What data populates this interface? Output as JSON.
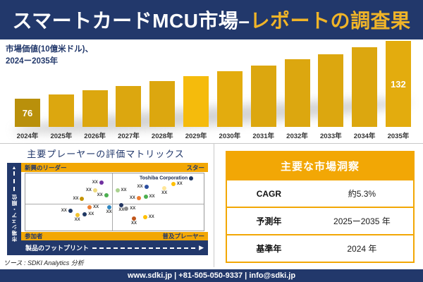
{
  "colors": {
    "navy": "#22386B",
    "gold_band": "#F2A705",
    "accent_yellow": "#F0B428",
    "bar_gold": "#DCA70F",
    "bar_gold_dark": "#B9900B",
    "bar_gold_bright": "#F5BB0C"
  },
  "header": {
    "title_main": "スマートカードMCU市場",
    "title_dash": "–",
    "title_accent": "レポートの調査果"
  },
  "bar_section": {
    "subtitle_line1": "市場価値(10億米ドル)、",
    "subtitle_line2": "2024ー2035年"
  },
  "chart_data": [
    {
      "type": "bar",
      "title": "市場価値(10億米ドル)、2024ー2035年",
      "categories": [
        "2024年",
        "2025年",
        "2026年",
        "2027年",
        "2028年",
        "2029年",
        "2030年",
        "2031年",
        "2032年",
        "2033年",
        "2034年",
        "2035年"
      ],
      "values": [
        76,
        80,
        84,
        88,
        93,
        98,
        103,
        108,
        114,
        119,
        126,
        132
      ],
      "data_labels": [
        "76",
        "",
        "",
        "",
        "",
        "",
        "",
        "",
        "",
        "",
        "",
        "132"
      ],
      "bar_colors": [
        "#B9900B",
        "#DCA70F",
        "#DCA70F",
        "#DCA70F",
        "#DCA70F",
        "#F5BB0C",
        "#E3AC0E",
        "#DCA70F",
        "#DCA70F",
        "#DCA70F",
        "#DCA70F",
        "#E3AC0E"
      ],
      "xlabel": "",
      "ylabel": "市場価値(10億米ドル)",
      "ylim": [
        0,
        140
      ],
      "grid": false,
      "note": "only 2024 (76) and 2035 (132) carry data labels; intermediate values estimated from bar heights at ~5.3% CAGR"
    },
    {
      "type": "scatter",
      "title": "主要プレーヤーの評価マトリックス",
      "xlabel": "製品のフットプリント",
      "ylabel": "市場シェア・順位",
      "quadrants": {
        "top_left": "新興のリーダー",
        "top_right": "スター",
        "bottom_left": "参加者",
        "bottom_right": "普及プレーヤー"
      },
      "divider_x_pct": 48.5,
      "divider_y_pct": 53,
      "points": [
        {
          "x": 42.6,
          "y": 16.5,
          "color": "#7030A0",
          "label": "XX",
          "label_side": "left"
        },
        {
          "x": 39.1,
          "y": 29.4,
          "color": "#F0DB7D",
          "label": "XX",
          "label_side": "left"
        },
        {
          "x": 45.3,
          "y": 38.8,
          "color": "#4CAF50",
          "label": "XX",
          "label_side": "left"
        },
        {
          "x": 31.8,
          "y": 44.7,
          "color": "#C49405",
          "label": "XX",
          "label_side": "left"
        },
        {
          "x": 36.0,
          "y": 58.8,
          "color": "#ED7D31",
          "label": "XX",
          "label_side": "right"
        },
        {
          "x": 46.9,
          "y": 58.8,
          "color": "#2E86C1",
          "label": "XX",
          "label_side": "below"
        },
        {
          "x": 25.2,
          "y": 65.9,
          "color": "#1F3864",
          "label": "XX",
          "label_side": "left"
        },
        {
          "x": 29.1,
          "y": 72.9,
          "color": "#F4C430",
          "label": "XX",
          "label_side": "below"
        },
        {
          "x": 33.3,
          "y": 71.8,
          "color": "#1F3864",
          "label": "XX",
          "label_side": "right"
        },
        {
          "x": 93.0,
          "y": 8.2,
          "color": "#1F3864",
          "label": "Toshiba Corporation",
          "label_side": "left",
          "emphasis": true
        },
        {
          "x": 51.6,
          "y": 29.4,
          "color": "#A9D18E",
          "label": "XX",
          "label_side": "right"
        },
        {
          "x": 67.8,
          "y": 23.5,
          "color": "#2C4E9E",
          "label": "XX",
          "label_side": "left"
        },
        {
          "x": 77.9,
          "y": 25.9,
          "color": "#FFE699",
          "label": "XX",
          "label_side": "below"
        },
        {
          "x": 82.9,
          "y": 18.8,
          "color": "#FFC000",
          "label": "XX",
          "label_side": "right"
        },
        {
          "x": 63.6,
          "y": 43.5,
          "color": "#ED7D31",
          "label": "XX",
          "label_side": "left"
        },
        {
          "x": 67.4,
          "y": 41.2,
          "color": "#4CAF50",
          "label": "XX",
          "label_side": "right"
        },
        {
          "x": 53.9,
          "y": 55.3,
          "color": "#243763",
          "label": "XX",
          "label_side": "below"
        },
        {
          "x": 56.6,
          "y": 61.2,
          "color": "#8E8E8E",
          "label": "XX",
          "label_side": "right"
        },
        {
          "x": 60.9,
          "y": 78.8,
          "color": "#C0561B",
          "label": "XX",
          "label_side": "below"
        },
        {
          "x": 67.1,
          "y": 76.5,
          "color": "#FFC000",
          "label": "XX",
          "label_side": "right"
        }
      ]
    }
  ],
  "matrix_section": {
    "title": "主要プレーヤーの評価マトリックス",
    "arrow_up": "▲",
    "arrow_right": "▶"
  },
  "insights_table": {
    "title": "主要な市場洞察",
    "rows": [
      {
        "label": "CAGR",
        "value": "約5.3%"
      },
      {
        "label": "予測年",
        "value": "2025ー2035 年"
      },
      {
        "label": "基準年",
        "value": "2024 年"
      }
    ]
  },
  "source_note": "ソース : SDKI Analytics 分析",
  "footer": {
    "contact": "www.sdki.jp | +81-505-050-9337 | info@sdki.jp"
  }
}
